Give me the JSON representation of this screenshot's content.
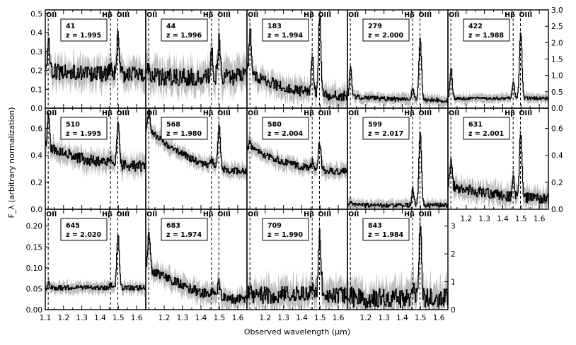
{
  "chart_data": {
    "type": "line",
    "xlabel": "Observed wavelength (μm)",
    "ylabel": "F_λ (arbitrary normalization)",
    "xlim": [
      1.1,
      1.65
    ],
    "x_ticks": [
      "1.1",
      "1.2",
      "1.3",
      "1.4",
      "1.5",
      "1.6"
    ],
    "line_labels": {
      "oii": "OII",
      "hb": "Hβ",
      "oiii": "OIII"
    },
    "line_positions": {
      "oii": 1.116,
      "hb": 1.457,
      "oiii": 1.497
    },
    "y_ticks": {
      "row1": [
        "0.0",
        "0.1",
        "0.2",
        "0.3",
        "0.4",
        "0.5"
      ],
      "row1_right": [
        "0.0",
        "0.5",
        "1.0",
        "1.5",
        "2.0",
        "2.5",
        "3.0"
      ],
      "row2": [
        "0.0",
        "0.2",
        "0.4",
        "0.6"
      ],
      "row2_right": [
        "0.0",
        "0.2",
        "0.4",
        "0.6"
      ],
      "row3": [
        "0.00",
        "0.05",
        "0.10",
        "0.15",
        "0.20"
      ],
      "row3_right": [
        "0",
        "1",
        "2",
        "3"
      ]
    },
    "panels": [
      {
        "id": "41",
        "z": "z = 1.995",
        "row": 0,
        "col": 0,
        "ylim": [
          0,
          0.5
        ],
        "cont": 0.17,
        "oii": 0.14,
        "hb": 0.05,
        "oiii": 0.2,
        "slope": 0.02,
        "noise": 0.04
      },
      {
        "id": "44",
        "z": "z = 1.996",
        "row": 0,
        "col": 1,
        "ylim": [
          0,
          0.5
        ],
        "cont": 0.16,
        "oii": 0.05,
        "hb": 0.15,
        "oiii": 0.18,
        "slope": 0.0,
        "noise": 0.045
      },
      {
        "id": "183",
        "z": "z = 1.994",
        "row": 0,
        "col": 2,
        "ylim": [
          0,
          0.5
        ],
        "cont": 0.06,
        "oii": 0.22,
        "hb": 0.2,
        "oiii": 0.4,
        "slope": 0.12,
        "noise": 0.03
      },
      {
        "id": "279",
        "z": "z = 2.000",
        "row": 0,
        "col": 3,
        "ylim": [
          0,
          0.5
        ],
        "cont": 0.04,
        "oii": 0.15,
        "hb": 0.06,
        "oiii": 0.32,
        "slope": 0.02,
        "noise": 0.012
      },
      {
        "id": "422",
        "z": "z = 1.988",
        "row": 0,
        "col": 4,
        "ylim": [
          0,
          3.0
        ],
        "cont": 0.3,
        "oii": 0.9,
        "hb": 0.5,
        "oiii": 2.0,
        "slope": 0.0,
        "noise": 0.05
      },
      {
        "id": "510",
        "z": "z = 1.995",
        "row": 1,
        "col": 0,
        "ylim": [
          0,
          0.75
        ],
        "cont": 0.32,
        "oii": 0.25,
        "hb": 0.05,
        "oiii": 0.3,
        "slope": 0.14,
        "noise": 0.04
      },
      {
        "id": "568",
        "z": "z = 1.980",
        "row": 1,
        "col": 1,
        "ylim": [
          0,
          0.75
        ],
        "cont": 0.28,
        "oii": 0.15,
        "hb": 0.05,
        "oiii": 0.3,
        "slope": 0.32,
        "noise": 0.025
      },
      {
        "id": "580",
        "z": "z = 2.004",
        "row": 1,
        "col": 2,
        "ylim": [
          0,
          0.75
        ],
        "cont": 0.28,
        "oii": 0.05,
        "hb": 0.06,
        "oiii": 0.2,
        "slope": 0.18,
        "noise": 0.025
      },
      {
        "id": "599",
        "z": "z = 2.017",
        "row": 1,
        "col": 3,
        "ylim": [
          0,
          0.75
        ],
        "cont": 0.03,
        "oii": 0.02,
        "hb": 0.12,
        "oiii": 0.55,
        "slope": 0.0,
        "noise": 0.015
      },
      {
        "id": "631",
        "z": "z = 2.001",
        "row": 1,
        "col": 4,
        "ylim": [
          0,
          0.75
        ],
        "cont": 0.08,
        "oii": 0.18,
        "hb": 0.12,
        "oiii": 0.47,
        "slope": 0.1,
        "noise": 0.04
      },
      {
        "id": "645",
        "z": "z = 2.020",
        "row": 2,
        "col": 0,
        "ylim": [
          0,
          0.24
        ],
        "cont": 0.052,
        "oii": 0.012,
        "hb": 0.008,
        "oiii": 0.125,
        "slope": 0.0,
        "noise": 0.006
      },
      {
        "id": "683",
        "z": "z = 1.974",
        "row": 2,
        "col": 1,
        "ylim": [
          0,
          0.24
        ],
        "cont": 0.025,
        "oii": 0.08,
        "hb": 0.01,
        "oiii": 0.035,
        "slope": 0.08,
        "noise": 0.012
      },
      {
        "id": "709",
        "z": "z = 1.990",
        "row": 2,
        "col": 2,
        "ylim": [
          0,
          0.24
        ],
        "cont": 0.035,
        "oii": 0.01,
        "hb": 0.02,
        "oiii": 0.14,
        "slope": 0.0,
        "noise": 0.02
      },
      {
        "id": "843",
        "z": "z = 1.984",
        "row": 2,
        "col": 3,
        "ylim": [
          0,
          3.6
        ],
        "cont": 0.4,
        "oii": 0.2,
        "hb": 0.3,
        "oiii": 2.6,
        "slope": 0.0,
        "noise": 0.35
      }
    ]
  }
}
